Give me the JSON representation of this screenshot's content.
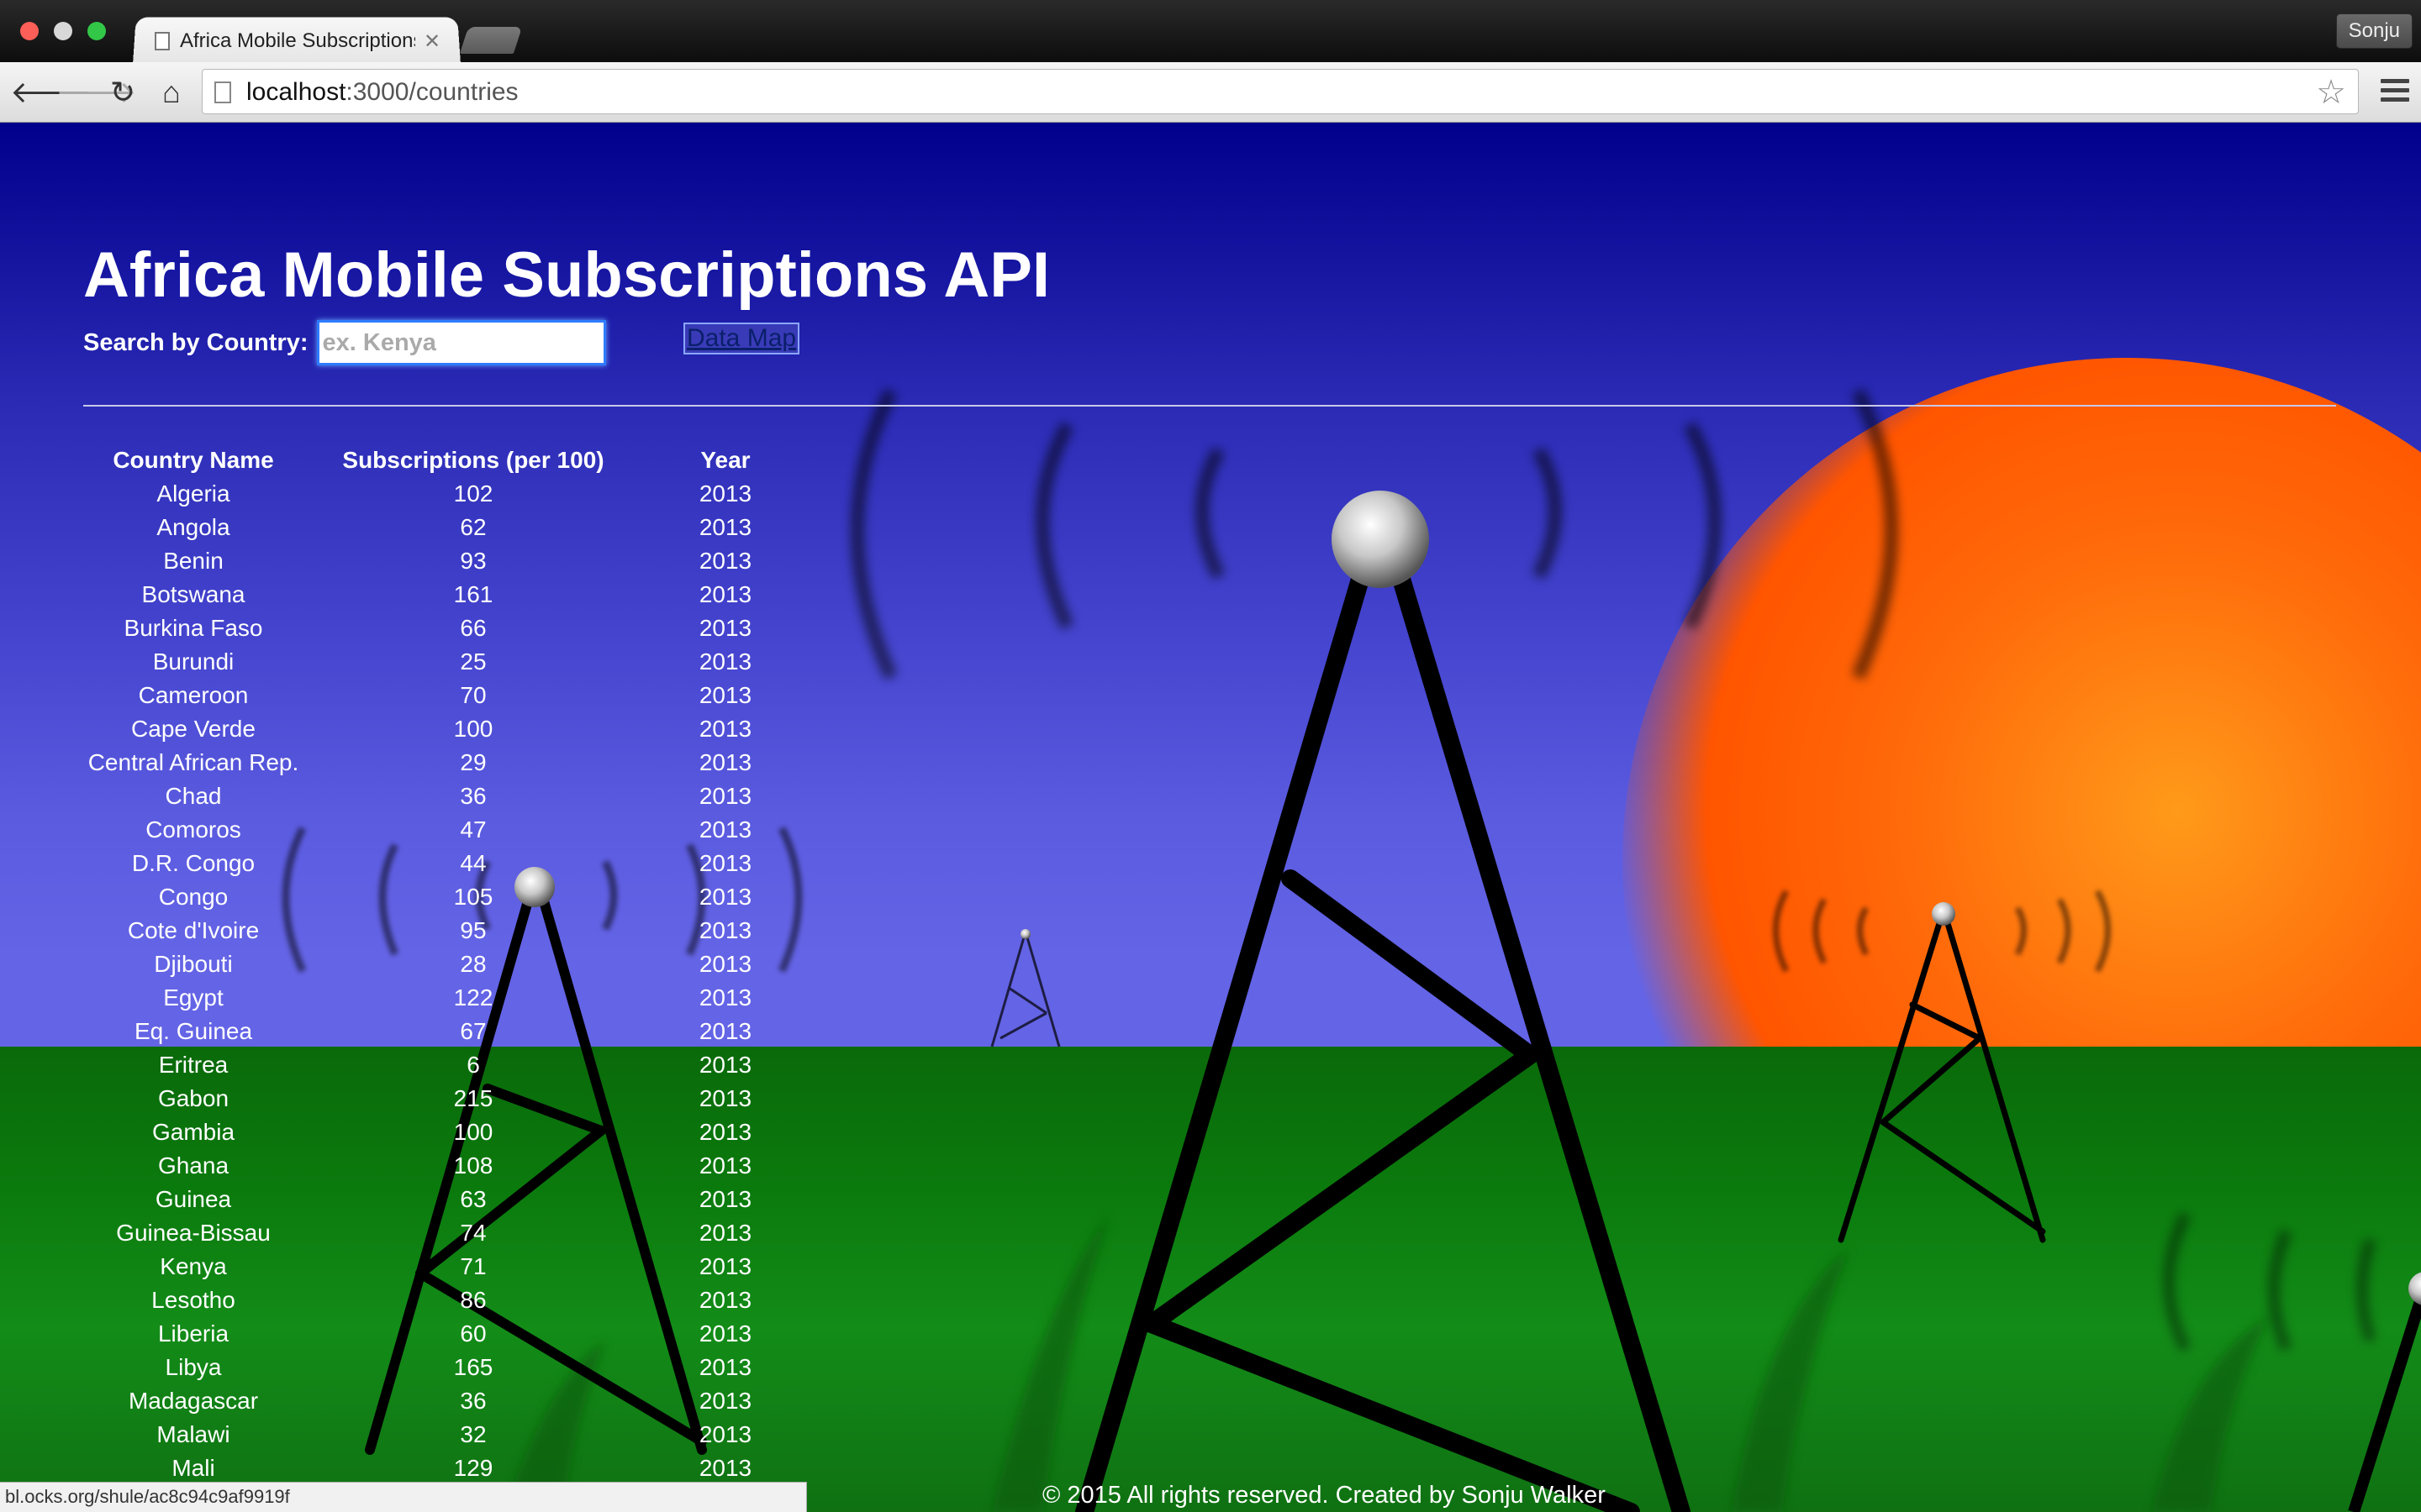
{
  "browser": {
    "tab_title": "Africa Mobile Subscriptions",
    "tab_close": "✕",
    "profile_name": "Sonju",
    "url_host": "localhost",
    "url_path": ":3000/countries",
    "star_icon": "☆",
    "back_icon": "🡐",
    "forward_icon": "🡒",
    "reload_icon": "↻",
    "home_icon": "⌂",
    "status_url": "bl.ocks.org/shule/ac8c94c9af9919f"
  },
  "page": {
    "title": "Africa Mobile Subscriptions API",
    "search_label": "Search by Country:",
    "search_placeholder": "ex. Kenya",
    "data_map_link": "Data Map",
    "footer": "© 2015 All rights reserved. Created by Sonju Walker"
  },
  "table": {
    "headers": [
      "Country Name",
      "Subscriptions (per 100)",
      "Year"
    ],
    "rows": [
      [
        "Algeria",
        "102",
        "2013"
      ],
      [
        "Angola",
        "62",
        "2013"
      ],
      [
        "Benin",
        "93",
        "2013"
      ],
      [
        "Botswana",
        "161",
        "2013"
      ],
      [
        "Burkina Faso",
        "66",
        "2013"
      ],
      [
        "Burundi",
        "25",
        "2013"
      ],
      [
        "Cameroon",
        "70",
        "2013"
      ],
      [
        "Cape Verde",
        "100",
        "2013"
      ],
      [
        "Central African Rep.",
        "29",
        "2013"
      ],
      [
        "Chad",
        "36",
        "2013"
      ],
      [
        "Comoros",
        "47",
        "2013"
      ],
      [
        "D.R. Congo",
        "44",
        "2013"
      ],
      [
        "Congo",
        "105",
        "2013"
      ],
      [
        "Cote d'Ivoire",
        "95",
        "2013"
      ],
      [
        "Djibouti",
        "28",
        "2013"
      ],
      [
        "Egypt",
        "122",
        "2013"
      ],
      [
        "Eq. Guinea",
        "67",
        "2013"
      ],
      [
        "Eritrea",
        "6",
        "2013"
      ],
      [
        "Gabon",
        "215",
        "2013"
      ],
      [
        "Gambia",
        "100",
        "2013"
      ],
      [
        "Ghana",
        "108",
        "2013"
      ],
      [
        "Guinea",
        "63",
        "2013"
      ],
      [
        "Guinea-Bissau",
        "74",
        "2013"
      ],
      [
        "Kenya",
        "71",
        "2013"
      ],
      [
        "Lesotho",
        "86",
        "2013"
      ],
      [
        "Liberia",
        "60",
        "2013"
      ],
      [
        "Libya",
        "165",
        "2013"
      ],
      [
        "Madagascar",
        "36",
        "2013"
      ],
      [
        "Malawi",
        "32",
        "2013"
      ],
      [
        "Mali",
        "129",
        "2013"
      ]
    ]
  }
}
